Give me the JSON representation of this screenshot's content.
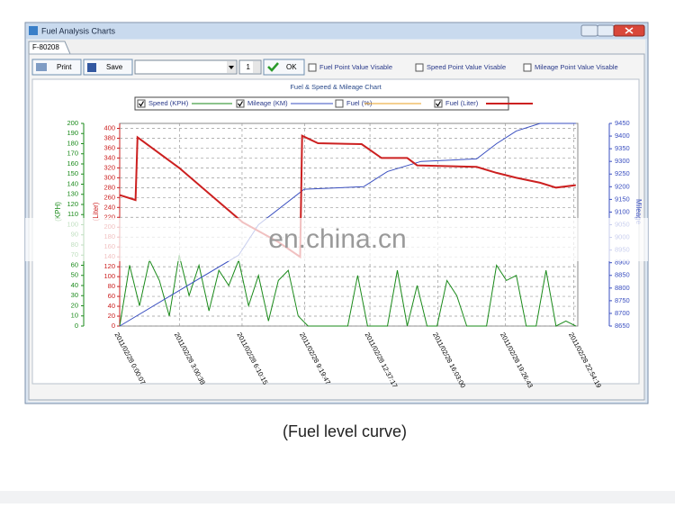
{
  "window": {
    "title": "Fuel Analysis Charts",
    "tab": "F-80208"
  },
  "toolbar": {
    "print": "Print",
    "save": "Save",
    "spin_value": 1,
    "ok": "OK",
    "checkboxes": [
      "Fuel Point Value Visable",
      "Speed Point Value Visable",
      "Mileage Point Value Visable"
    ]
  },
  "chart_data": {
    "type": "line",
    "title": "Fuel & Speed & Mileage Chart",
    "y_label": "(Liter)",
    "y2_label": "Mileage",
    "y3_label": "(KPH)",
    "xlim": [
      0,
      23.1
    ],
    "xticks": [
      {
        "value": 0.002,
        "label": "2011/02/28 0:00:07"
      },
      {
        "value": 3.01,
        "label": "2011/02/28 3:00:38"
      },
      {
        "value": 6.17,
        "label": "2011/02/28 6:10:15"
      },
      {
        "value": 9.33,
        "label": "2011/02/28 9:19:47"
      },
      {
        "value": 12.62,
        "label": "2011/02/28 12:37:17"
      },
      {
        "value": 16.05,
        "label": "2011/02/28 16:03:00"
      },
      {
        "value": 19.45,
        "label": "2011/02/28 19:26:43"
      },
      {
        "value": 22.9,
        "label": "2011/02/28 22:54:19"
      }
    ],
    "ylim": [
      0,
      410
    ],
    "yticks": [
      0,
      20,
      40,
      60,
      80,
      100,
      120,
      140,
      160,
      180,
      200,
      220,
      240,
      260,
      280,
      300,
      320,
      340,
      360,
      380,
      400
    ],
    "y2lim": [
      8650,
      9450
    ],
    "y2ticks": [
      8650,
      8700,
      8750,
      8800,
      8850,
      8900,
      8950,
      9000,
      9050,
      9100,
      9150,
      9200,
      9250,
      9300,
      9350,
      9400,
      9450
    ],
    "y3lim": [
      0,
      200
    ],
    "y3ticks": [
      0,
      10,
      20,
      30,
      40,
      50,
      60,
      70,
      80,
      90,
      100,
      110,
      120,
      130,
      140,
      150,
      160,
      170,
      180,
      190,
      200
    ],
    "grid": true,
    "series": [
      {
        "name": "Speed (KPH)",
        "color": "#1a8a1a",
        "axis": "y3",
        "checked": true,
        "x": [
          0,
          0.5,
          1,
          1.5,
          2,
          2.5,
          3,
          3.5,
          4,
          4.5,
          5,
          5.5,
          6,
          6.5,
          7,
          7.5,
          8,
          8.5,
          9,
          9.5,
          10,
          10.5,
          11,
          11.5,
          12,
          12.5,
          13,
          13.5,
          14,
          14.5,
          15,
          15.5,
          16,
          16.5,
          17,
          17.5,
          18,
          18.5,
          19,
          19.5,
          20,
          20.5,
          21,
          21.5,
          22,
          22.5,
          23
        ],
        "values": [
          0,
          60,
          20,
          65,
          45,
          10,
          70,
          30,
          60,
          15,
          55,
          40,
          65,
          20,
          50,
          5,
          45,
          55,
          10,
          0,
          0,
          0,
          0,
          0,
          50,
          0,
          0,
          0,
          55,
          0,
          40,
          0,
          0,
          45,
          30,
          0,
          0,
          0,
          60,
          45,
          50,
          0,
          0,
          55,
          0,
          5,
          0
        ]
      },
      {
        "name": "Mileage (KM)",
        "color": "#3a4fc0",
        "axis": "y2",
        "checked": true,
        "x": [
          0,
          3,
          6,
          7,
          9.3,
          12.3,
          13.5,
          15.2,
          18,
          19,
          20,
          21.2,
          23
        ],
        "values": [
          8650,
          8790,
          8930,
          9050,
          9190,
          9200,
          9260,
          9300,
          9310,
          9370,
          9420,
          9450,
          9450
        ]
      },
      {
        "name": "Fuel (%)",
        "color": "#e8a020",
        "axis": "y",
        "checked": false,
        "x": [],
        "values": []
      },
      {
        "name": "Fuel (Liter)",
        "color": "#cc2020",
        "axis": "y",
        "checked": true,
        "x": [
          0,
          0.8,
          0.9,
          3,
          6.2,
          8,
          9.1,
          9.2,
          10,
          12.2,
          13.2,
          14.5,
          15,
          18,
          19,
          20,
          21.2,
          22,
          23
        ],
        "values": [
          265,
          255,
          382,
          320,
          210,
          170,
          140,
          385,
          370,
          368,
          340,
          340,
          325,
          322,
          310,
          300,
          290,
          280,
          285
        ]
      }
    ]
  },
  "watermark": "en.china.cn",
  "caption": "(Fuel level curve)"
}
